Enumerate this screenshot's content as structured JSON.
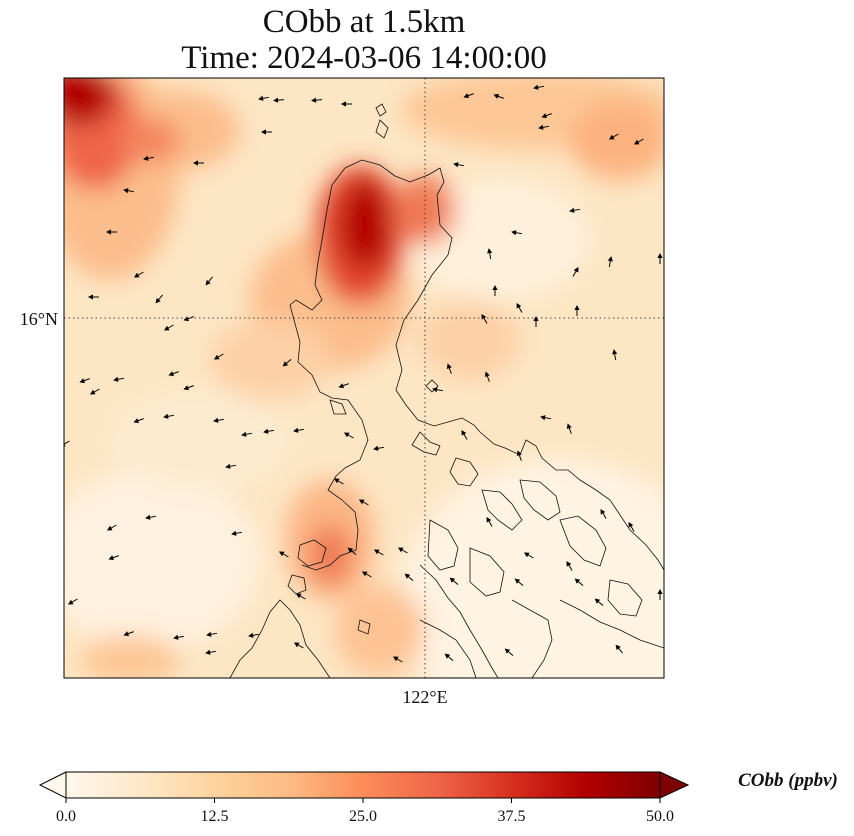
{
  "title": {
    "line1": "CObb at 1.5km",
    "line2": "Time: 2024-03-06 14:00:00"
  },
  "map": {
    "lat_label": "16°N",
    "lon_label": "122°E",
    "grid_style": "dotted",
    "field_colormap": "OrRd"
  },
  "colorbar": {
    "label": "CObb (ppbv)",
    "ticks": [
      "0.0",
      "12.5",
      "25.0",
      "37.5",
      "50.0"
    ],
    "min": 0,
    "max": 50,
    "extend": "both",
    "colors": [
      "#fff7ec",
      "#fee8c8",
      "#fdd49e",
      "#fdbb84",
      "#fc8d59",
      "#ef6548",
      "#d7301f",
      "#b30000",
      "#7f0000"
    ]
  }
}
